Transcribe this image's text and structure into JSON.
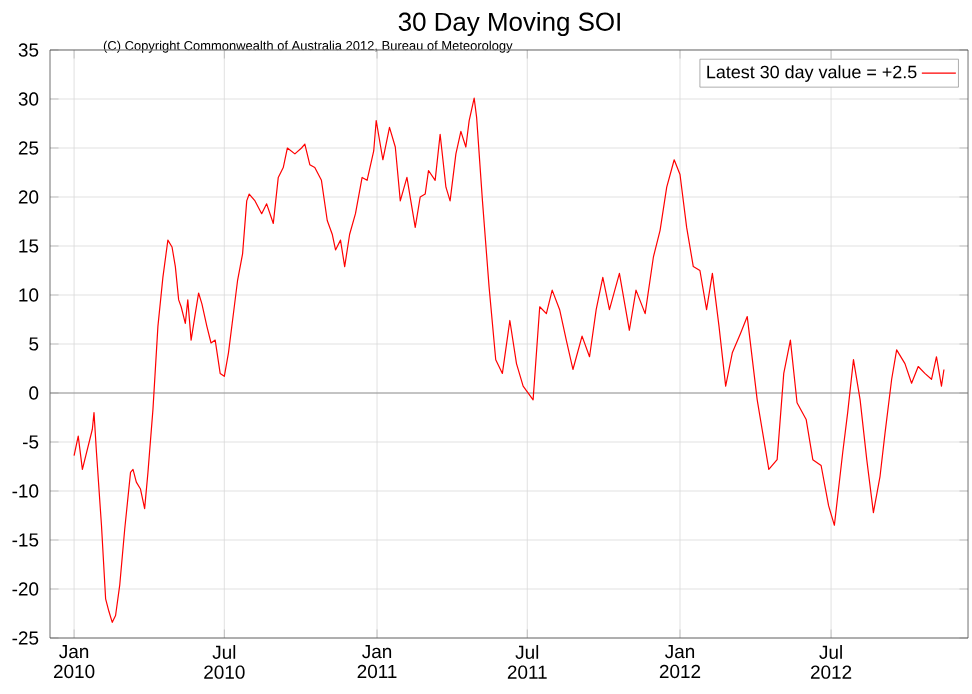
{
  "chart_data": {
    "type": "line",
    "title": "30 Day Moving SOI",
    "subtitle": "(C) Copyright Commonwealth of Australia 2012, Bureau of Meteorology",
    "x": [
      "2010-01-01",
      "2010-01-06",
      "2010-01-11",
      "2010-01-23",
      "2010-01-25",
      "2010-01-28",
      "2010-02-03",
      "2010-02-08",
      "2010-02-12",
      "2010-02-16",
      "2010-02-20",
      "2010-02-25",
      "2010-03-03",
      "2010-03-10",
      "2010-03-13",
      "2010-03-17",
      "2010-03-22",
      "2010-03-27",
      "2010-03-31",
      "2010-04-06",
      "2010-04-12",
      "2010-04-18",
      "2010-04-24",
      "2010-04-29",
      "2010-05-03",
      "2010-05-07",
      "2010-05-10",
      "2010-05-15",
      "2010-05-18",
      "2010-05-22",
      "2010-05-27",
      "2010-05-31",
      "2010-06-04",
      "2010-06-10",
      "2010-06-15",
      "2010-06-20",
      "2010-06-26",
      "2010-07-01",
      "2010-07-06",
      "2010-07-13",
      "2010-07-17",
      "2010-07-23",
      "2010-07-28",
      "2010-07-31",
      "2010-08-07",
      "2010-08-15",
      "2010-08-21",
      "2010-08-29",
      "2010-09-04",
      "2010-09-10",
      "2010-09-15",
      "2010-09-24",
      "2010-10-02",
      "2010-10-06",
      "2010-10-12",
      "2010-10-18",
      "2010-10-26",
      "2010-11-02",
      "2010-11-08",
      "2010-11-12",
      "2010-11-18",
      "2010-11-23",
      "2010-11-29",
      "2010-12-06",
      "2010-12-14",
      "2010-12-20",
      "2010-12-28",
      "2010-12-31",
      "2011-01-08",
      "2011-01-16",
      "2011-01-23",
      "2011-01-29",
      "2011-02-06",
      "2011-02-16",
      "2011-02-22",
      "2011-02-28",
      "2011-03-04",
      "2011-03-12",
      "2011-03-18",
      "2011-03-25",
      "2011-03-30",
      "2011-04-06",
      "2011-04-12",
      "2011-04-18",
      "2011-04-22",
      "2011-04-28",
      "2011-05-01",
      "2011-05-08",
      "2011-05-16",
      "2011-05-24",
      "2011-06-01",
      "2011-06-10",
      "2011-06-18",
      "2011-06-26",
      "2011-07-08",
      "2011-07-16",
      "2011-07-24",
      "2011-07-31",
      "2011-08-09",
      "2011-08-17",
      "2011-08-25",
      "2011-09-05",
      "2011-09-14",
      "2011-09-22",
      "2011-09-30",
      "2011-10-08",
      "2011-10-20",
      "2011-11-01",
      "2011-11-09",
      "2011-11-20",
      "2011-11-30",
      "2011-12-08",
      "2011-12-16",
      "2011-12-25",
      "2012-01-01",
      "2012-01-09",
      "2012-01-17",
      "2012-01-25",
      "2012-02-02",
      "2012-02-09",
      "2012-02-17",
      "2012-02-25",
      "2012-03-04",
      "2012-03-14",
      "2012-03-22",
      "2012-04-03",
      "2012-04-17",
      "2012-04-27",
      "2012-05-05",
      "2012-05-13",
      "2012-05-21",
      "2012-06-01",
      "2012-06-09",
      "2012-06-19",
      "2012-06-28",
      "2012-07-05",
      "2012-07-15",
      "2012-07-21",
      "2012-07-28",
      "2012-08-05",
      "2012-08-13",
      "2012-08-21",
      "2012-08-29",
      "2012-09-04",
      "2012-09-12",
      "2012-09-18",
      "2012-09-28",
      "2012-10-06",
      "2012-10-14",
      "2012-10-22",
      "2012-10-30",
      "2012-11-05",
      "2012-11-11",
      "2012-11-14"
    ],
    "series": [
      {
        "name": "Latest 30 day value = +2.5",
        "color": "#ff0000",
        "values": [
          -6.4,
          -4.4,
          -7.8,
          -3.7,
          -2.0,
          -6.1,
          -13.5,
          -21,
          -22.3,
          -23.4,
          -22.7,
          -19.6,
          -13.9,
          -8.1,
          -7.8,
          -9.1,
          -9.8,
          -11.8,
          -8.1,
          -1.7,
          6.8,
          11.8,
          15.6,
          14.9,
          12.9,
          9.5,
          8.8,
          7.1,
          9.5,
          5.4,
          8.1,
          10.2,
          9.1,
          6.8,
          5.1,
          5.4,
          2.0,
          1.7,
          4.1,
          8.8,
          11.5,
          14.2,
          19.6,
          20.3,
          19.6,
          18.3,
          19.3,
          17.3,
          22.0,
          23.0,
          25.0,
          24.4,
          25.0,
          25.4,
          23.3,
          23.0,
          21.7,
          17.6,
          16.2,
          14.6,
          15.6,
          12.9,
          16.2,
          18.3,
          22.0,
          21.7,
          24.7,
          27.8,
          23.8,
          27.1,
          25.1,
          19.6,
          22.0,
          16.9,
          20.0,
          20.3,
          22.7,
          21.7,
          26.4,
          21.0,
          19.6,
          24.4,
          26.7,
          25.1,
          27.8,
          30.1,
          28.1,
          19.6,
          10.8,
          3.4,
          2.0,
          7.4,
          3.0,
          0.7,
          -0.7,
          8.8,
          8.1,
          10.5,
          8.5,
          5.4,
          2.4,
          5.8,
          3.7,
          8.5,
          11.8,
          8.5,
          12.2,
          6.4,
          10.5,
          8.1,
          13.9,
          16.6,
          21.0,
          23.8,
          22.3,
          16.9,
          12.9,
          12.5,
          8.5,
          12.2,
          6.8,
          0.7,
          4.1,
          6.1,
          7.8,
          -0.7,
          -7.8,
          -6.8,
          2.0,
          5.4,
          -1.0,
          -2.7,
          -6.8,
          -7.4,
          -11.5,
          -13.5,
          -6.1,
          -2.0,
          3.4,
          -0.7,
          -6.8,
          -12.2,
          -8.5,
          -4.1,
          1.4,
          4.4,
          3.0,
          1.0,
          2.7,
          2.0,
          1.4,
          3.7,
          0.7,
          2.4
        ]
      }
    ],
    "xlim": [
      "2009-12-03",
      "2012-12-13"
    ],
    "xticks": [
      {
        "value": "2010-01-01",
        "label": "Jan 2010"
      },
      {
        "value": "2010-07-01",
        "label": "Jul 2010"
      },
      {
        "value": "2011-01-01",
        "label": "Jan 2011"
      },
      {
        "value": "2011-07-01",
        "label": "Jul 2011"
      },
      {
        "value": "2012-01-01",
        "label": "Jan 2012"
      },
      {
        "value": "2012-07-01",
        "label": "Jul 2012"
      }
    ],
    "ylim": [
      -25,
      35
    ],
    "yticks": [
      -25,
      -20,
      -15,
      -10,
      -5,
      0,
      5,
      10,
      15,
      20,
      25,
      30,
      35
    ],
    "ref_lines": [
      {
        "axis": "y",
        "value": 0,
        "color": "#808080"
      }
    ],
    "grid": true,
    "legend": "top right",
    "marker": "none",
    "line_style": "solid"
  }
}
